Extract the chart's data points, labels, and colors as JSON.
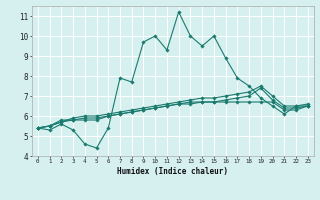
{
  "title": "",
  "xlabel": "Humidex (Indice chaleur)",
  "background_color": "#d6f0f0",
  "grid_color": "#ffffff",
  "line_color": "#1a7a6e",
  "xlim": [
    -0.5,
    23.5
  ],
  "ylim": [
    4,
    11.5
  ],
  "xticks": [
    0,
    1,
    2,
    3,
    4,
    5,
    6,
    7,
    8,
    9,
    10,
    11,
    12,
    13,
    14,
    15,
    16,
    17,
    18,
    19,
    20,
    21,
    22,
    23
  ],
  "yticks": [
    4,
    5,
    6,
    7,
    8,
    9,
    10,
    11
  ],
  "series": [
    [
      5.4,
      5.3,
      5.6,
      5.3,
      4.6,
      4.4,
      5.4,
      7.9,
      7.7,
      9.7,
      10.0,
      9.3,
      11.2,
      10.0,
      9.5,
      10.0,
      8.9,
      7.9,
      7.5,
      6.9,
      6.5,
      6.1,
      6.5,
      6.5
    ],
    [
      5.4,
      5.5,
      5.8,
      5.8,
      5.8,
      5.8,
      6.0,
      6.1,
      6.2,
      6.3,
      6.4,
      6.5,
      6.6,
      6.6,
      6.7,
      6.7,
      6.7,
      6.7,
      6.7,
      6.7,
      6.7,
      6.3,
      6.3,
      6.5
    ],
    [
      5.4,
      5.5,
      5.7,
      5.8,
      5.9,
      5.9,
      6.0,
      6.1,
      6.2,
      6.3,
      6.4,
      6.5,
      6.6,
      6.7,
      6.7,
      6.7,
      6.8,
      6.9,
      7.0,
      7.4,
      6.8,
      6.4,
      6.4,
      6.5
    ],
    [
      5.4,
      5.5,
      5.7,
      5.9,
      6.0,
      6.0,
      6.1,
      6.2,
      6.3,
      6.4,
      6.5,
      6.6,
      6.7,
      6.8,
      6.9,
      6.9,
      7.0,
      7.1,
      7.2,
      7.5,
      7.0,
      6.5,
      6.5,
      6.6
    ]
  ]
}
